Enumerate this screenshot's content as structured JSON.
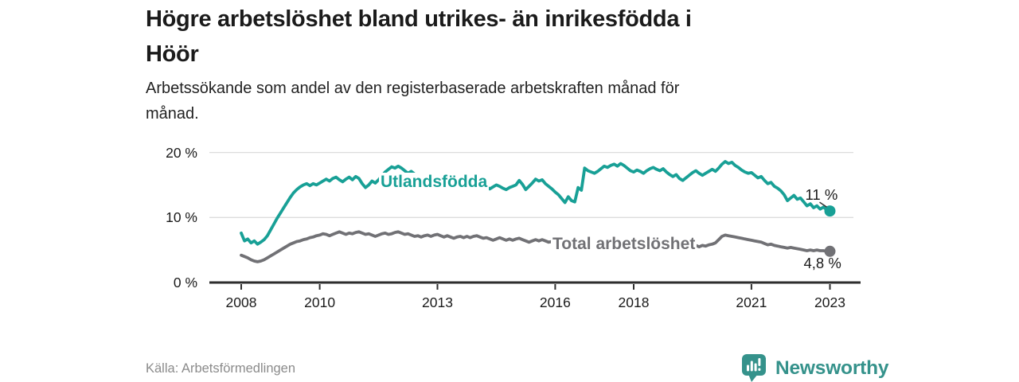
{
  "source": "Källa: Arbetsförmedlingen",
  "branding": {
    "logo_text": "Newsworthy",
    "logo_icon": "newsworthy-speech-bubble-bars-icon",
    "brand_color": "#35928b"
  },
  "colors": {
    "foreign_born_line": "#18a096",
    "total_line": "#717175",
    "grid": "#dcdcdc",
    "axis": "#2e2e2e",
    "text": "#1a1a1a",
    "muted_text": "#8b8b8b"
  },
  "chart_data": {
    "type": "line",
    "title": "Högre arbetslöshet bland utrikes- än inrikesfödda i\nHöör",
    "subtitle": "Arbetssökande som andel av den registerbaserade arbetskraften månad för\nmånad.",
    "x_start_year": 2008,
    "x_interval": "monthly",
    "x_end": "2023-01",
    "x_ticks": [
      2008,
      2010,
      2013,
      2016,
      2018,
      2021,
      2023
    ],
    "y_ticks": [
      {
        "value": 0,
        "label": "0 %"
      },
      {
        "value": 10,
        "label": "10 %"
      },
      {
        "value": 20,
        "label": "20 %"
      }
    ],
    "ylim": [
      0,
      21
    ],
    "grid": true,
    "legend_position": "inline-labels",
    "unit": "%",
    "series": [
      {
        "name": "Utlandsfödda",
        "color": "#18a096",
        "end_label": "11 %",
        "end_value": 11.0,
        "values": [
          7.6,
          6.4,
          6.7,
          6.1,
          6.4,
          5.9,
          6.2,
          6.6,
          7.2,
          8.1,
          9.0,
          9.9,
          10.7,
          11.5,
          12.3,
          13.1,
          13.8,
          14.3,
          14.7,
          15.0,
          15.2,
          14.9,
          15.2,
          15.0,
          15.3,
          15.6,
          15.9,
          15.6,
          16.0,
          16.2,
          15.8,
          15.5,
          15.9,
          16.2,
          15.8,
          16.3,
          16.0,
          15.2,
          14.6,
          15.0,
          15.6,
          15.3,
          15.8,
          16.4,
          17.0,
          17.4,
          17.8,
          17.6,
          17.9,
          17.6,
          17.2,
          16.8,
          17.1,
          16.7,
          16.3,
          16.5,
          16.1,
          15.8,
          16.0,
          15.7,
          15.9,
          15.5,
          15.2,
          15.4,
          15.0,
          14.7,
          14.9,
          15.2,
          14.9,
          14.6,
          14.8,
          14.4,
          14.2,
          14.6,
          14.9,
          14.7,
          14.4,
          14.7,
          15.0,
          14.8,
          14.5,
          14.3,
          14.6,
          14.8,
          15.0,
          15.7,
          15.1,
          14.3,
          14.8,
          15.3,
          15.9,
          15.6,
          15.8,
          15.2,
          14.8,
          14.4,
          13.9,
          13.5,
          12.9,
          12.3,
          13.2,
          12.6,
          12.4,
          14.6,
          14.2,
          17.6,
          17.2,
          17.0,
          16.8,
          17.1,
          17.5,
          17.9,
          17.7,
          18.0,
          18.2,
          17.9,
          18.3,
          18.0,
          17.6,
          17.2,
          17.0,
          17.3,
          17.1,
          16.8,
          17.2,
          17.5,
          17.7,
          17.4,
          17.2,
          17.5,
          17.0,
          16.6,
          16.3,
          16.6,
          16.0,
          15.7,
          16.1,
          16.5,
          16.9,
          17.2,
          16.8,
          16.5,
          16.8,
          17.1,
          17.4,
          17.1,
          17.6,
          18.2,
          18.6,
          18.3,
          18.5,
          18.0,
          17.7,
          17.3,
          17.0,
          16.8,
          16.9,
          16.5,
          16.1,
          16.3,
          15.7,
          15.2,
          15.4,
          14.8,
          14.5,
          14.1,
          13.5,
          12.6,
          13.0,
          13.4,
          12.8,
          13.0,
          12.4,
          11.8,
          12.1,
          11.5,
          11.8,
          11.3,
          11.6,
          11.2,
          11.0
        ]
      },
      {
        "name": "Total arbetslöshet",
        "color": "#717175",
        "end_label": "4,8 %",
        "end_value": 4.8,
        "values": [
          4.2,
          4.0,
          3.8,
          3.5,
          3.3,
          3.2,
          3.3,
          3.5,
          3.8,
          4.1,
          4.4,
          4.7,
          5.0,
          5.3,
          5.6,
          5.9,
          6.1,
          6.3,
          6.4,
          6.6,
          6.7,
          6.9,
          7.0,
          7.2,
          7.3,
          7.5,
          7.4,
          7.2,
          7.4,
          7.6,
          7.8,
          7.6,
          7.4,
          7.6,
          7.5,
          7.7,
          7.8,
          7.6,
          7.4,
          7.5,
          7.3,
          7.1,
          7.3,
          7.5,
          7.6,
          7.4,
          7.5,
          7.7,
          7.8,
          7.6,
          7.4,
          7.5,
          7.3,
          7.1,
          7.2,
          7.0,
          7.2,
          7.3,
          7.1,
          7.3,
          7.4,
          7.2,
          7.0,
          7.2,
          7.0,
          6.8,
          7.0,
          7.1,
          6.9,
          7.1,
          6.9,
          7.1,
          7.2,
          7.0,
          6.8,
          6.9,
          6.7,
          6.5,
          6.7,
          6.9,
          6.7,
          6.5,
          6.7,
          6.5,
          6.7,
          6.8,
          6.6,
          6.4,
          6.2,
          6.4,
          6.6,
          6.4,
          6.6,
          6.4,
          6.2,
          6.3,
          6.4,
          6.2,
          6.0,
          5.8,
          5.7,
          5.9,
          6.1,
          5.9,
          5.7,
          5.9,
          6.1,
          6.0,
          6.2,
          6.0,
          5.9,
          6.1,
          5.9,
          5.7,
          5.9,
          6.1,
          6.0,
          6.2,
          6.0,
          6.1,
          5.9,
          5.8,
          6.0,
          5.8,
          5.6,
          5.8,
          6.0,
          5.8,
          5.6,
          5.8,
          5.6,
          5.7,
          5.5,
          5.3,
          5.5,
          5.7,
          5.5,
          5.7,
          5.9,
          5.7,
          5.5,
          5.7,
          5.6,
          5.8,
          5.9,
          6.1,
          6.6,
          7.1,
          7.3,
          7.2,
          7.1,
          7.0,
          6.9,
          6.8,
          6.7,
          6.6,
          6.5,
          6.4,
          6.3,
          6.2,
          6.0,
          5.8,
          5.9,
          5.7,
          5.6,
          5.5,
          5.4,
          5.3,
          5.4,
          5.3,
          5.2,
          5.1,
          5.0,
          4.9,
          5.0,
          4.9,
          5.0,
          4.9,
          4.9,
          4.8,
          4.8
        ]
      }
    ]
  }
}
